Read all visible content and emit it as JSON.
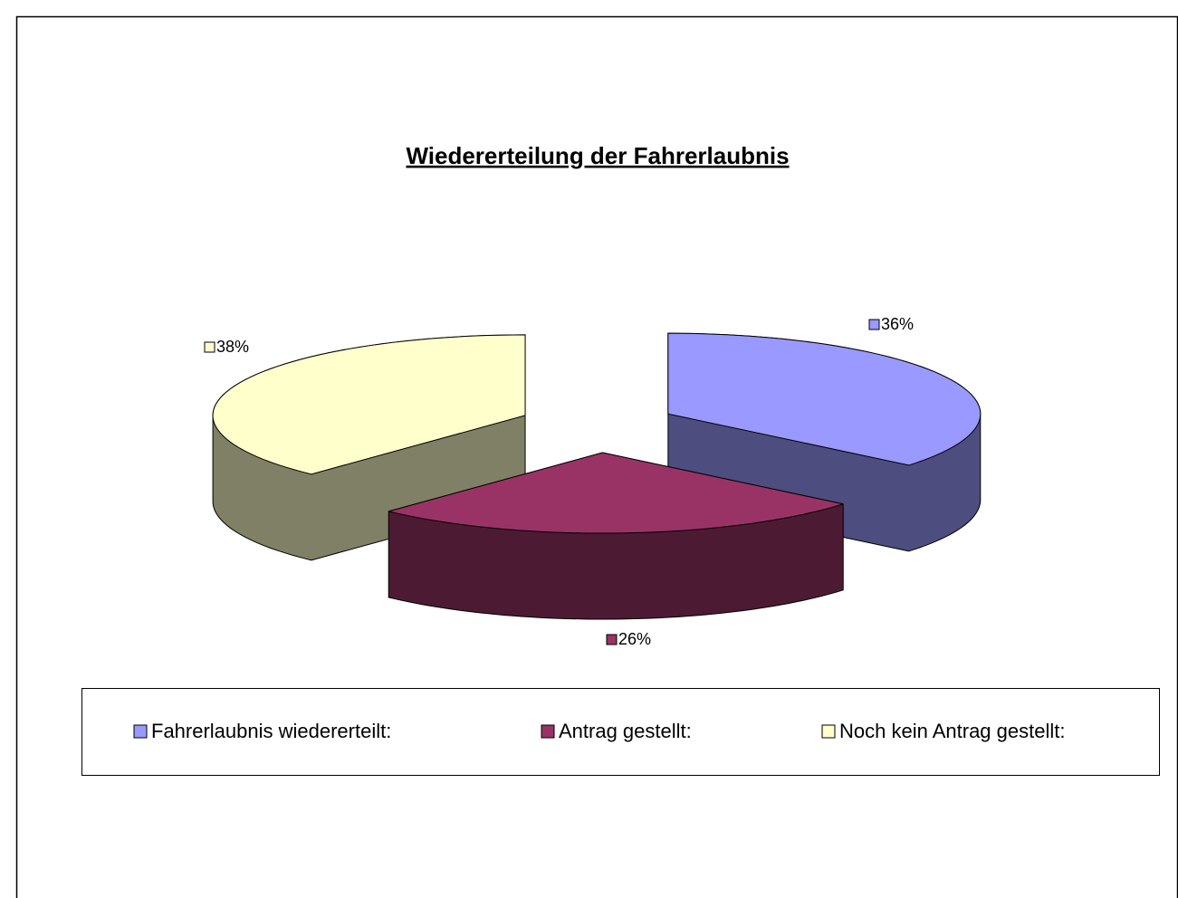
{
  "chart_data": {
    "type": "pie3d",
    "title": "Wiedererteilung der Fahrerlaubnis",
    "categories": [
      "Fahrerlaubnis wiedererteilt:",
      "Antrag gestellt:",
      "Noch kein Antrag gestellt:"
    ],
    "values": [
      36,
      26,
      38
    ],
    "value_labels": [
      "36%",
      "26%",
      "38%"
    ],
    "colors": [
      "#9999ff",
      "#993366",
      "#ffffcc"
    ],
    "legend": "bottom"
  }
}
